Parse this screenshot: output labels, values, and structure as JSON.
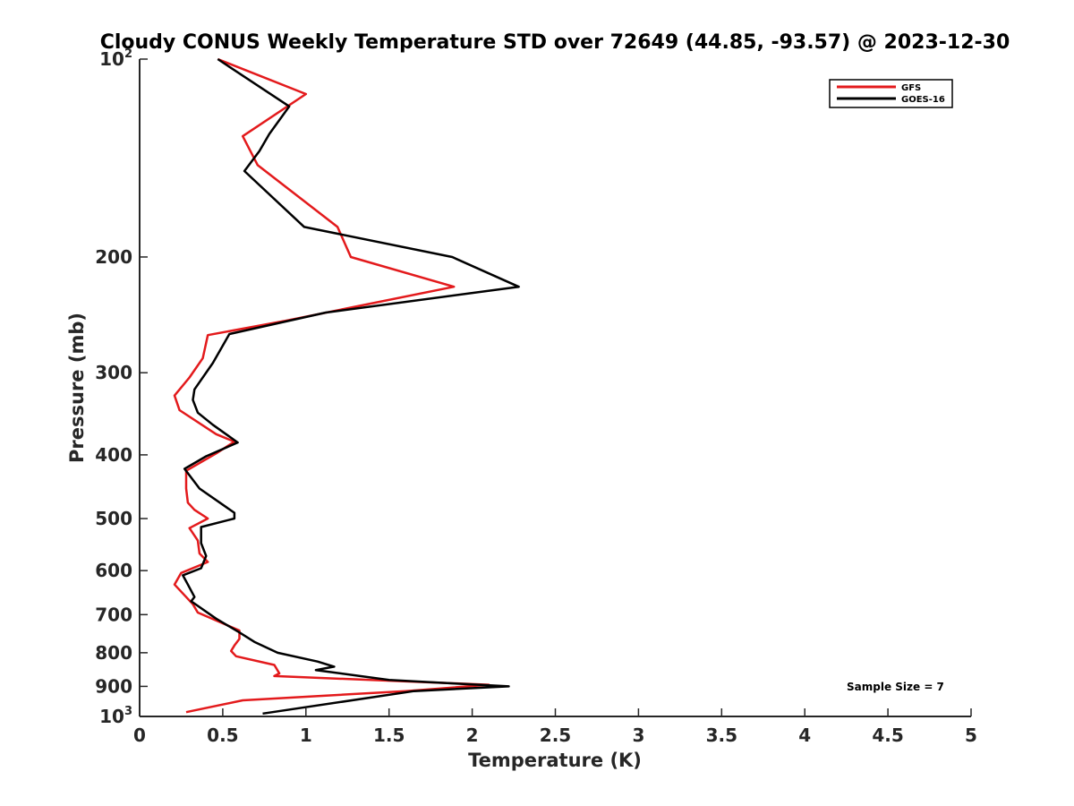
{
  "chart_data": {
    "type": "line",
    "title": "Cloudy CONUS Weekly Temperature STD over 72649 (44.85, -93.57) @ 2023-12-30",
    "xlabel": "Temperature (K)",
    "ylabel": "Pressure (mb)",
    "xlim": [
      0,
      5
    ],
    "ylim": [
      100,
      1000
    ],
    "y_scale": "log",
    "y_reversed": true,
    "x_ticks": [
      "0",
      "0.5",
      "1",
      "1.5",
      "2",
      "2.5",
      "3",
      "3.5",
      "4",
      "4.5",
      "5"
    ],
    "x_tick_values": [
      0,
      0.5,
      1,
      1.5,
      2,
      2.5,
      3,
      3.5,
      4,
      4.5,
      5
    ],
    "y_ticks": [
      {
        "value": 100,
        "base": "10",
        "exp": "2"
      },
      {
        "value": 200,
        "label": "200"
      },
      {
        "value": 300,
        "label": "300"
      },
      {
        "value": 400,
        "label": "400"
      },
      {
        "value": 500,
        "label": "500"
      },
      {
        "value": 600,
        "label": "600"
      },
      {
        "value": 700,
        "label": "700"
      },
      {
        "value": 800,
        "label": "800"
      },
      {
        "value": 900,
        "label": "900"
      },
      {
        "value": 1000,
        "base": "10",
        "exp": "3"
      }
    ],
    "grid": false,
    "legend_position": "top-right",
    "series": [
      {
        "name": "GFS",
        "color": "#e31a1c",
        "points": [
          [
            0.47,
            100
          ],
          [
            1.0,
            113
          ],
          [
            0.62,
            131
          ],
          [
            0.71,
            145
          ],
          [
            1.19,
            180
          ],
          [
            1.27,
            200
          ],
          [
            1.89,
            222
          ],
          [
            0.88,
            250
          ],
          [
            0.41,
            263
          ],
          [
            0.38,
            285
          ],
          [
            0.3,
            305
          ],
          [
            0.21,
            325
          ],
          [
            0.24,
            342
          ],
          [
            0.46,
            372
          ],
          [
            0.57,
            382
          ],
          [
            0.46,
            398
          ],
          [
            0.28,
            423
          ],
          [
            0.28,
            450
          ],
          [
            0.29,
            473
          ],
          [
            0.33,
            485
          ],
          [
            0.41,
            500
          ],
          [
            0.3,
            517
          ],
          [
            0.35,
            540
          ],
          [
            0.36,
            565
          ],
          [
            0.41,
            582
          ],
          [
            0.25,
            605
          ],
          [
            0.21,
            630
          ],
          [
            0.32,
            675
          ],
          [
            0.35,
            695
          ],
          [
            0.6,
            740
          ],
          [
            0.6,
            762
          ],
          [
            0.57,
            780
          ],
          [
            0.55,
            795
          ],
          [
            0.58,
            810
          ],
          [
            0.81,
            835
          ],
          [
            0.84,
            860
          ],
          [
            0.81,
            868
          ],
          [
            2.1,
            895
          ],
          [
            1.6,
            915
          ],
          [
            0.62,
            945
          ],
          [
            0.28,
            985
          ]
        ]
      },
      {
        "name": "GOES-16",
        "color": "#000000",
        "points": [
          [
            0.47,
            100
          ],
          [
            0.9,
            118
          ],
          [
            0.78,
            130
          ],
          [
            0.72,
            138
          ],
          [
            0.63,
            148
          ],
          [
            0.99,
            180
          ],
          [
            1.88,
            200
          ],
          [
            2.28,
            222
          ],
          [
            1.12,
            243
          ],
          [
            0.54,
            262
          ],
          [
            0.44,
            290
          ],
          [
            0.33,
            318
          ],
          [
            0.32,
            330
          ],
          [
            0.35,
            345
          ],
          [
            0.44,
            360
          ],
          [
            0.59,
            383
          ],
          [
            0.4,
            402
          ],
          [
            0.27,
            420
          ],
          [
            0.36,
            450
          ],
          [
            0.57,
            490
          ],
          [
            0.57,
            500
          ],
          [
            0.37,
            515
          ],
          [
            0.37,
            545
          ],
          [
            0.4,
            570
          ],
          [
            0.37,
            595
          ],
          [
            0.26,
            610
          ],
          [
            0.29,
            630
          ],
          [
            0.33,
            658
          ],
          [
            0.31,
            668
          ],
          [
            0.46,
            710
          ],
          [
            0.6,
            745
          ],
          [
            0.69,
            770
          ],
          [
            0.83,
            800
          ],
          [
            1.07,
            825
          ],
          [
            1.17,
            840
          ],
          [
            1.06,
            850
          ],
          [
            1.5,
            880
          ],
          [
            2.22,
            900
          ],
          [
            1.65,
            915
          ],
          [
            0.74,
            990
          ]
        ]
      }
    ],
    "annotation": "Sample Size = 7"
  }
}
